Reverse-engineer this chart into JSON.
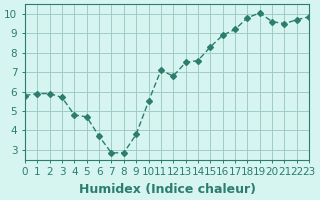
{
  "x": [
    0,
    1,
    2,
    3,
    4,
    5,
    6,
    7,
    8,
    9,
    10,
    11,
    12,
    13,
    14,
    15,
    16,
    17,
    18,
    19,
    20,
    21,
    22,
    23
  ],
  "y": [
    5.8,
    5.9,
    5.9,
    5.7,
    4.8,
    4.7,
    3.7,
    2.85,
    2.85,
    3.8,
    5.5,
    7.1,
    6.8,
    7.5,
    7.6,
    8.3,
    8.9,
    9.2,
    9.8,
    10.05,
    9.6,
    9.5,
    9.7,
    9.85
  ],
  "line_color": "#2d7d6e",
  "marker": "D",
  "marker_size": 3,
  "bg_color": "#d6f5f0",
  "grid_color": "#a0ccc5",
  "xlabel": "Humidex (Indice chaleur)",
  "ylabel": "",
  "xlim": [
    0,
    23
  ],
  "ylim": [
    2.5,
    10.5
  ],
  "yticks": [
    3,
    4,
    5,
    6,
    7,
    8,
    9,
    10
  ],
  "xticks": [
    0,
    1,
    2,
    3,
    4,
    5,
    6,
    7,
    8,
    9,
    10,
    11,
    12,
    13,
    14,
    15,
    16,
    17,
    18,
    19,
    20,
    21,
    22,
    23
  ],
  "xtick_labels": [
    "0",
    "1",
    "2",
    "3",
    "4",
    "5",
    "6",
    "7",
    "8",
    "9",
    "10",
    "11",
    "12",
    "13",
    "14",
    "15",
    "16",
    "17",
    "18",
    "19",
    "20",
    "21",
    "22",
    "23"
  ],
  "tick_color": "#2d7d6e",
  "spine_color": "#2d7d6e",
  "xlabel_fontsize": 9,
  "tick_fontsize": 7.5
}
